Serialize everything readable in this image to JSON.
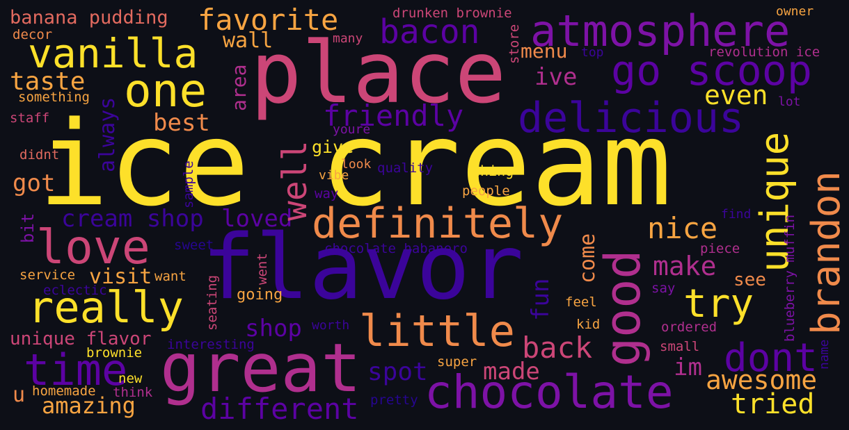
{
  "words": {
    "ice_cream": "ice cream",
    "place": "place",
    "flavor": "flavor",
    "great": "great",
    "atmosphere": "atmosphere",
    "go_scoop": "go scoop",
    "bacon": "bacon",
    "vanilla": "vanilla",
    "one": "one",
    "favorite": "favorite",
    "banana_pudding": "banana pudding",
    "drunken_brownie": "drunken brownie",
    "owner": "owner",
    "decor": "decor",
    "many": "many",
    "wall": "wall",
    "menu": "menu",
    "store": "store",
    "top": "top",
    "revolution_ice": "revolution ice",
    "taste": "taste",
    "something": "something",
    "staff": "staff",
    "best": "best",
    "area": "area",
    "friendly": "friendly",
    "delicious": "delicious",
    "ive": "ive",
    "even": "even",
    "lot": "lot",
    "unique": "unique",
    "brandon": "brandon",
    "love": "love",
    "didnt": "didnt",
    "got": "got",
    "always": "always",
    "well": "well",
    "youre": "youre",
    "give": "give",
    "look": "look",
    "vibe": "vibe",
    "quality": "quality",
    "thing": "thing",
    "way": "way",
    "people": "people",
    "sample": "sample",
    "definitely": "definitely",
    "good": "good",
    "nice": "nice",
    "find": "find",
    "blueberry_muffin": "blueberry muffin",
    "bit": "bit",
    "cream_shop": "cream shop",
    "loved": "loved",
    "sweet": "sweet",
    "chocolate_habanero": "chocolate habanero",
    "piece": "piece",
    "make": "make",
    "come": "come",
    "see": "see",
    "service": "service",
    "visit": "visit",
    "want": "want",
    "went": "went",
    "eclectic": "eclectic",
    "say": "say",
    "really": "really",
    "seating": "seating",
    "going": "going",
    "fun": "fun",
    "feel": "feel",
    "try": "try",
    "shop": "shop",
    "little": "little",
    "kid": "kid",
    "ordered": "ordered",
    "worth": "worth",
    "unique_flavor": "unique flavor",
    "interesting": "interesting",
    "back": "back",
    "small": "small",
    "name": "name",
    "dont": "dont",
    "time": "time",
    "brownie": "brownie",
    "super": "super",
    "im": "im",
    "spot": "spot",
    "made": "made",
    "awesome": "awesome",
    "new": "new",
    "u": "u",
    "homemade": "homemade",
    "think": "think",
    "chocolate": "chocolate",
    "pretty": "pretty",
    "amazing": "amazing",
    "different": "different",
    "tried": "tried"
  },
  "colors": {
    "background": "#0d0f17",
    "yellow": "#fde02a",
    "light_orange": "#f7a442",
    "orange": "#f08a4b",
    "salmon": "#e26a5f",
    "pink": "#cc4677",
    "magenta": "#b02f8e",
    "purple": "#7d12a6",
    "violet": "#5c02a3",
    "indigo": "#3b049a",
    "dark_indigo": "#260591"
  }
}
